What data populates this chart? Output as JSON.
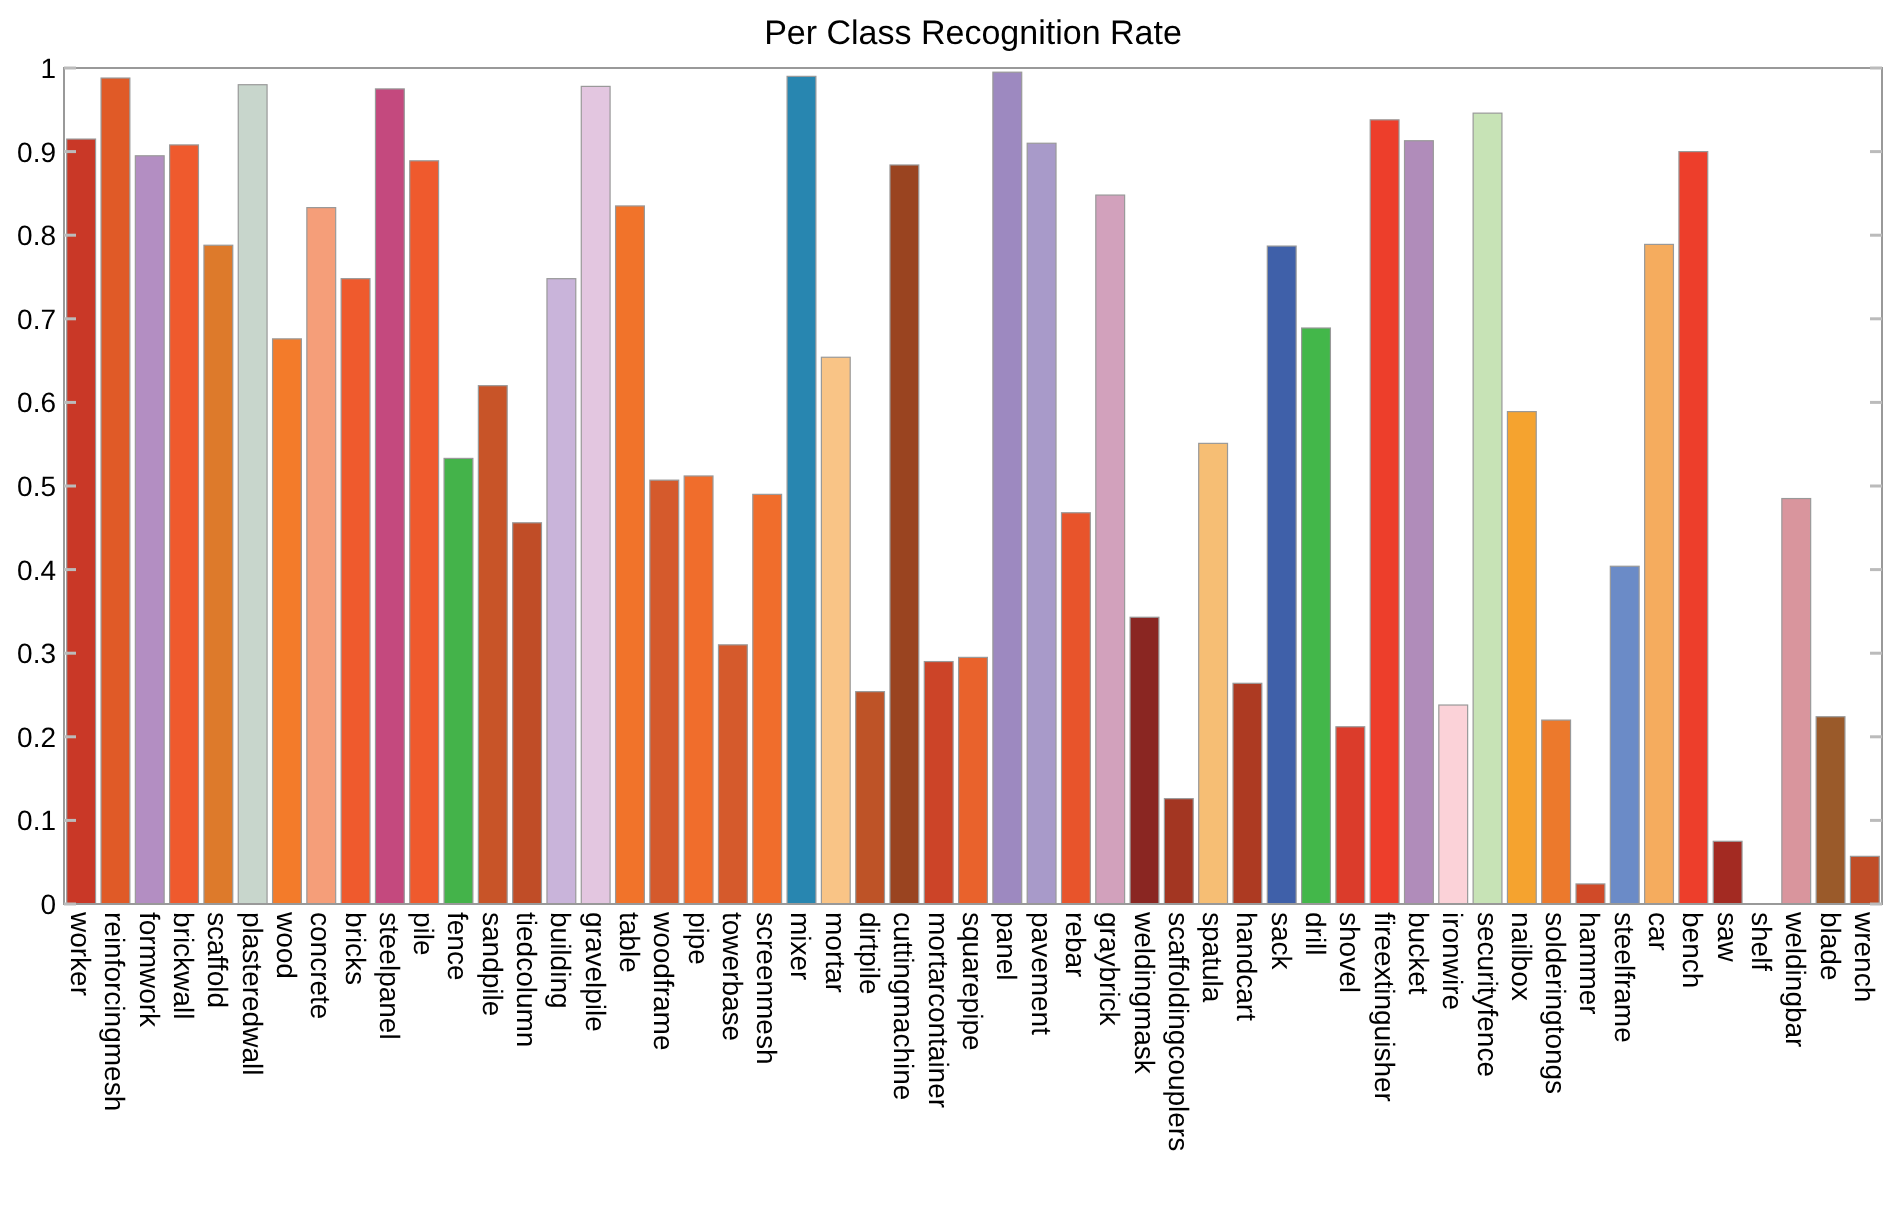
{
  "chart_data": {
    "type": "bar",
    "title": "Per Class Recognition Rate",
    "categories": [
      "worker",
      "reinforcingmesh",
      "formwork",
      "brickwall",
      "scaffold",
      "plasteredwall",
      "wood",
      "concrete",
      "bricks",
      "steelpanel",
      "pile",
      "fence",
      "sandpile",
      "tiedcolumn",
      "building",
      "gravelpile",
      "table",
      "woodframe",
      "pipe",
      "towerbase",
      "screenmesh",
      "mixer",
      "mortar",
      "dirtpile",
      "cuttingmachine",
      "mortarcontainer",
      "squarepipe",
      "panel",
      "pavement",
      "rebar",
      "graybrick",
      "weldingmask",
      "scaffoldingcouplers",
      "spatula",
      "handcart",
      "sack",
      "drill",
      "shovel",
      "fireextinguisher",
      "bucket",
      "ironwire",
      "securityfence",
      "nailbox",
      "solderingtongs",
      "hammer",
      "steelframe",
      "car",
      "bench",
      "saw",
      "shelf",
      "weldingbar",
      "blade",
      "wrench"
    ],
    "values": [
      0.915,
      0.988,
      0.895,
      0.908,
      0.788,
      0.98,
      0.676,
      0.833,
      0.748,
      0.975,
      0.889,
      0.533,
      0.62,
      0.456,
      0.748,
      0.978,
      0.835,
      0.507,
      0.512,
      0.31,
      0.49,
      0.99,
      0.654,
      0.254,
      0.884,
      0.29,
      0.295,
      0.995,
      0.91,
      0.468,
      0.848,
      0.343,
      0.126,
      0.551,
      0.264,
      0.787,
      0.689,
      0.212,
      0.938,
      0.913,
      0.238,
      0.946,
      0.589,
      0.22,
      0.024,
      0.404,
      0.789,
      0.9,
      0.075,
      0,
      0.485,
      0.224,
      0.057
    ],
    "colors": [
      "#c93827",
      "#e05a27",
      "#b38ec2",
      "#ef5a2d",
      "#dd7a2b",
      "#c8d6cc",
      "#f37b2a",
      "#f59e79",
      "#ef5a2d",
      "#c4497e",
      "#ef5a2d",
      "#44b34a",
      "#c85428",
      "#c04d27",
      "#c9b4da",
      "#e3c6e0",
      "#f1732a",
      "#d55a2c",
      "#f06d2c",
      "#d55a2c",
      "#f06d2c",
      "#2886b0",
      "#f9c486",
      "#be5327",
      "#9a4420",
      "#cc4428",
      "#e9622c",
      "#9d89c0",
      "#a89ac9",
      "#e8542b",
      "#d2a1bc",
      "#8a2622",
      "#a33622",
      "#f6be74",
      "#ad3a22",
      "#3f60a9",
      "#43b74a",
      "#db3c2b",
      "#ed3e2b",
      "#b08cba",
      "#fbd2d8",
      "#c7e3b6",
      "#f5a32f",
      "#ec792c",
      "#d04a28",
      "#6b8bc7",
      "#f5ac5e",
      "#ed3e2b",
      "#a32a22",
      "#cccccc",
      "#d9959d",
      "#9a5a2a",
      "#c04d27"
    ],
    "ylim": [
      0,
      1
    ],
    "yticks": [
      0,
      0.1,
      0.2,
      0.3,
      0.4,
      0.5,
      0.6,
      0.7,
      0.8,
      0.9,
      1
    ],
    "grid": false
  }
}
